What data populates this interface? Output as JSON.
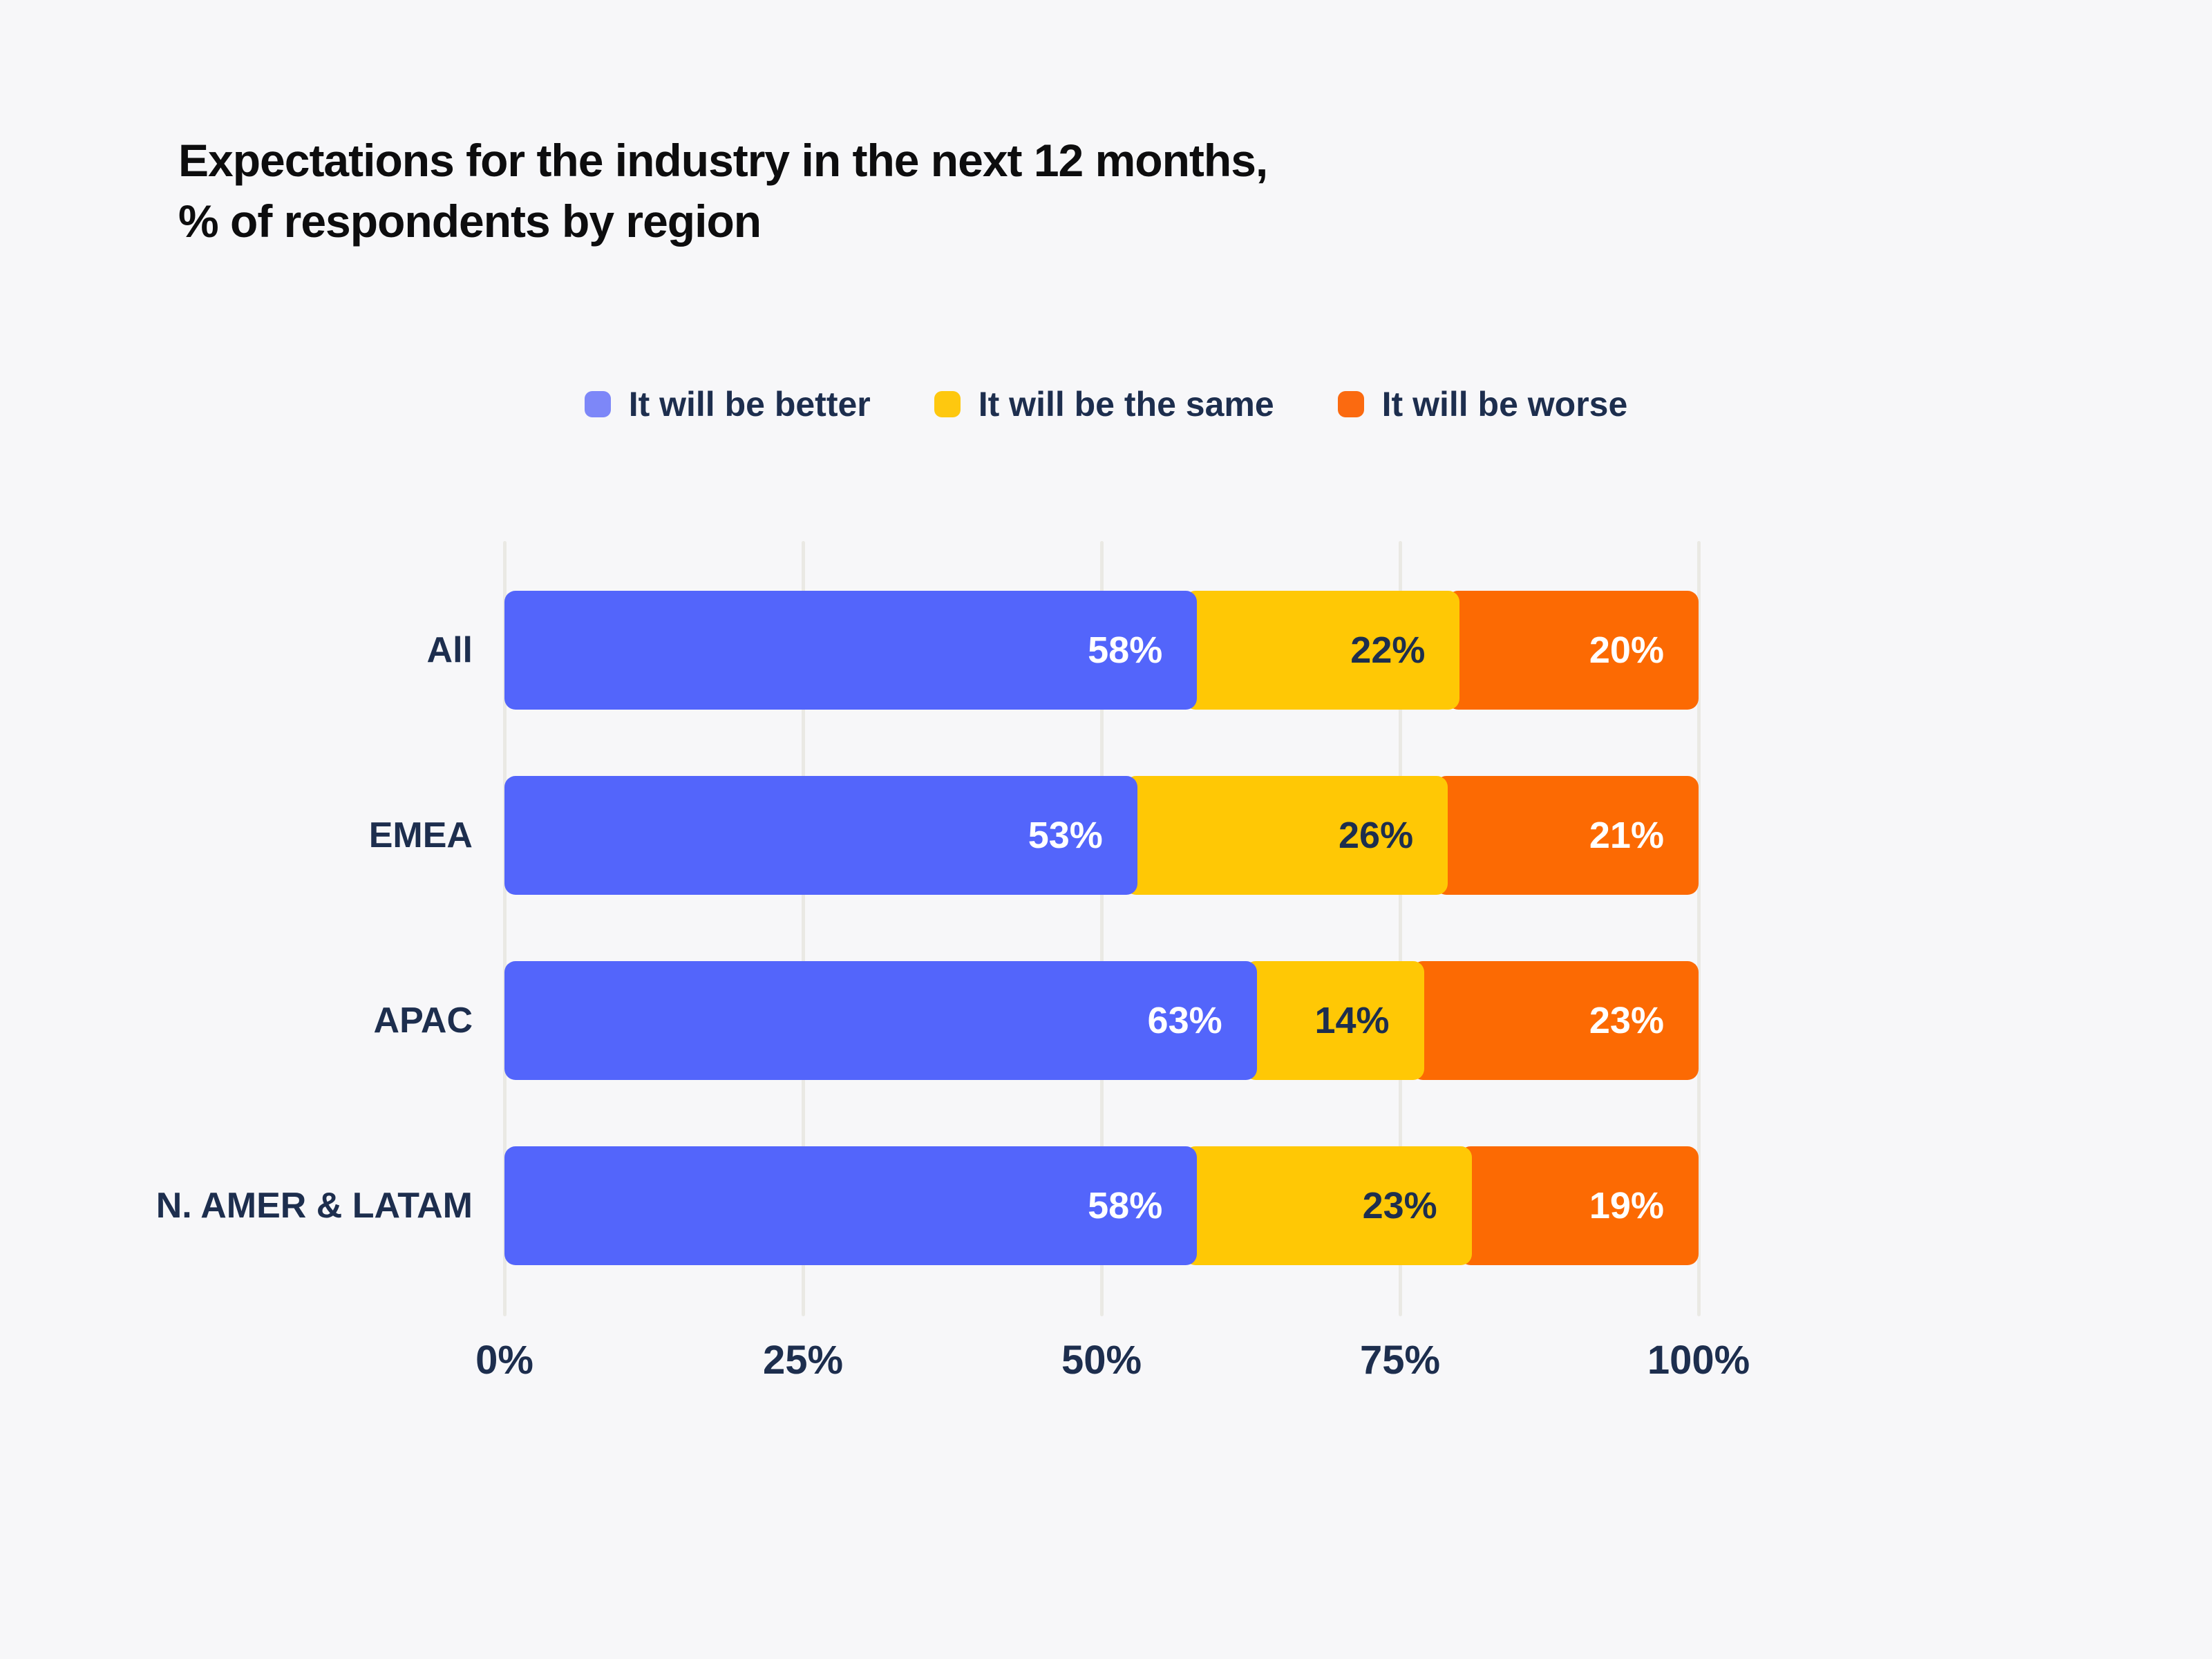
{
  "title": {
    "line1": "Expectations for the industry in the next 12 months,",
    "line2": "% of respondents by region"
  },
  "colors": {
    "background": "#f7f7f9",
    "title_text": "#0d0d0e",
    "navy_text": "#1d2e4e",
    "gridline": "#eae9e4",
    "white_label": "#ffffff"
  },
  "legend": {
    "items": [
      {
        "label": "It will be better",
        "swatch_color": "#7d87f8"
      },
      {
        "label": "It will be the same",
        "swatch_color": "#fec80f"
      },
      {
        "label": "It will be worse",
        "swatch_color": "#fb6a10"
      }
    ]
  },
  "chart_data": {
    "type": "bar",
    "orientation": "horizontal",
    "stacked": true,
    "title": "Expectations for the industry in the next 12 months, % of respondents by region",
    "categories": [
      "All",
      "EMEA",
      "APAC",
      "N. AMER & LATAM"
    ],
    "series": [
      {
        "name": "It will be better",
        "color": "#5365fb",
        "label_color": "#ffffff",
        "values": [
          58,
          53,
          63,
          58
        ]
      },
      {
        "name": "It will be the same",
        "color": "#ffc805",
        "label_color": "#1d2e4e",
        "values": [
          22,
          26,
          14,
          23
        ]
      },
      {
        "name": "It will be worse",
        "color": "#fc6a03",
        "label_color": "#ffffff",
        "values": [
          20,
          21,
          23,
          19
        ]
      }
    ],
    "value_suffix": "%",
    "xlabel": "",
    "ylabel": "",
    "xlim": [
      0,
      100
    ],
    "x_ticks": [
      "0%",
      "25%",
      "50%",
      "75%",
      "100%"
    ],
    "grid": "vertical",
    "legend_position": "top-center"
  }
}
